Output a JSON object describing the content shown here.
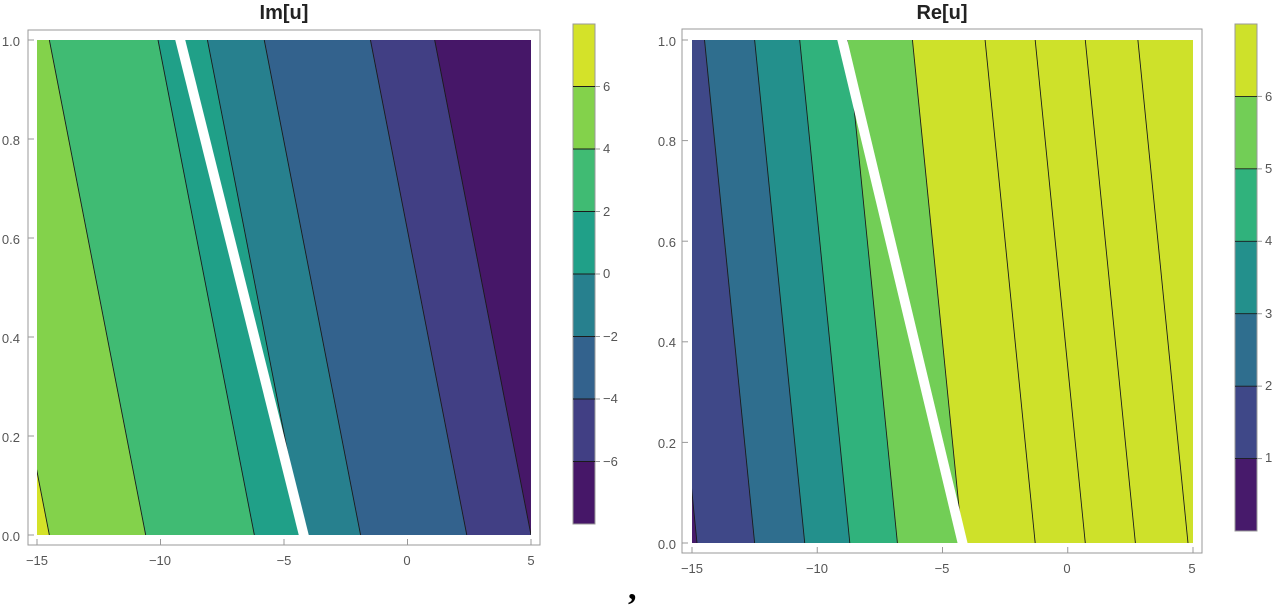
{
  "chart_data": [
    {
      "type": "contour",
      "title": "Im[u]",
      "xlim": [
        -15,
        5
      ],
      "ylim": [
        0,
        1
      ],
      "xticks": [
        -15,
        -10,
        -5,
        0,
        5
      ],
      "yticks": [
        0.0,
        0.2,
        0.4,
        0.6,
        0.8,
        1.0
      ],
      "xtick_labels": [
        "−15",
        "−10",
        "−5",
        "0",
        "5"
      ],
      "ytick_labels": [
        "0.0",
        "0.2",
        "0.4",
        "0.6",
        "0.8",
        "1.0"
      ],
      "contour_levels": [
        6,
        4,
        2,
        0,
        -2,
        -4,
        -6
      ],
      "contour_shift": 3.9,
      "region_values": [
        7,
        5,
        3,
        1,
        -1,
        -3,
        -5,
        -7
      ],
      "x_at_y0": [
        -14.5,
        -10.6,
        -6.2,
        -4.2,
        -1.9,
        2.4,
        5.0
      ],
      "branch_cut": {
        "x_at_y0": -4.2,
        "x_at_y1": -9.2
      },
      "colorbar": {
        "range": [
          -8,
          8
        ],
        "ticks": [
          6,
          4,
          2,
          0,
          -2,
          -4,
          -6
        ],
        "tick_labels": [
          "6",
          "4",
          "2",
          "0",
          "−2",
          "−4",
          "−6"
        ]
      }
    },
    {
      "type": "contour",
      "title": "Re[u]",
      "xlim": [
        -15,
        5
      ],
      "ylim": [
        0,
        1
      ],
      "xticks": [
        -15,
        -10,
        -5,
        0,
        5
      ],
      "yticks": [
        0.0,
        0.2,
        0.4,
        0.6,
        0.8,
        1.0
      ],
      "xtick_labels": [
        "−15",
        "−10",
        "−5",
        "0",
        "5"
      ],
      "ytick_labels": [
        "0.0",
        "0.2",
        "0.4",
        "0.6",
        "0.8",
        "1.0"
      ],
      "contour_levels": [
        1,
        2,
        3,
        4,
        5,
        6
      ],
      "contour_shift": 2.0,
      "region_values": [
        0.5,
        1.5,
        2.5,
        3.5,
        4.5,
        5.5,
        6.5
      ],
      "x_at_y0": [
        -14.8,
        -12.5,
        -10.5,
        -8.7,
        -6.8,
        -4.2,
        -1.3,
        0.7,
        2.7,
        4.8
      ],
      "branch_cut": {
        "x_at_y0": -4.2,
        "x_at_y1": -9.0
      },
      "colorbar": {
        "range": [
          0,
          7
        ],
        "ticks": [
          1,
          2,
          3,
          4,
          5,
          6
        ],
        "tick_labels": [
          "1",
          "2",
          "3",
          "4",
          "5",
          "6"
        ]
      }
    }
  ],
  "caption": ","
}
